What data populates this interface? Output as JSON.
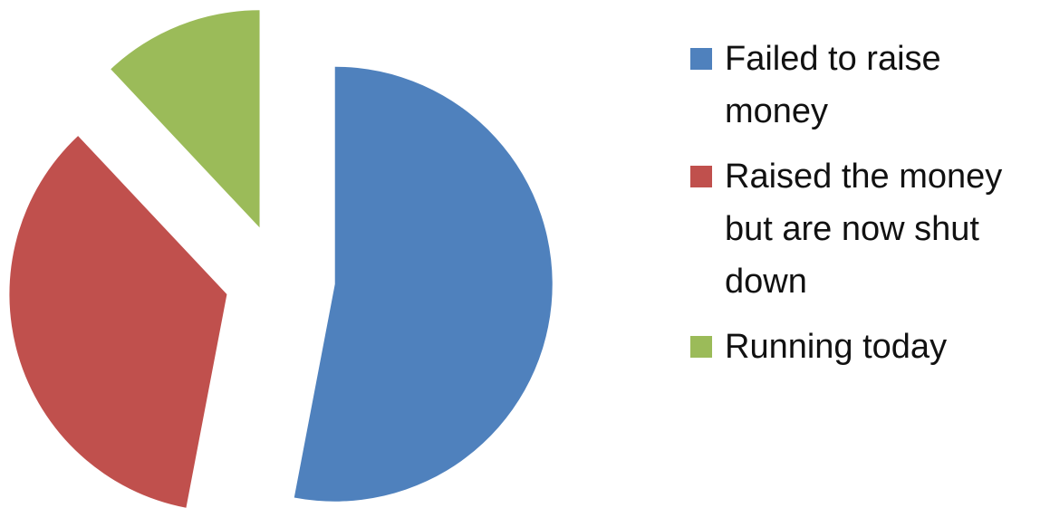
{
  "chart_data": {
    "type": "pie",
    "categories": [
      "Failed to raise money",
      "Raised the money but are now shut down",
      "Running today"
    ],
    "values": [
      53,
      35,
      12
    ],
    "colors": [
      "#4f81bd",
      "#c0504d",
      "#9bbb59"
    ],
    "exploded": true,
    "legend": "right"
  }
}
